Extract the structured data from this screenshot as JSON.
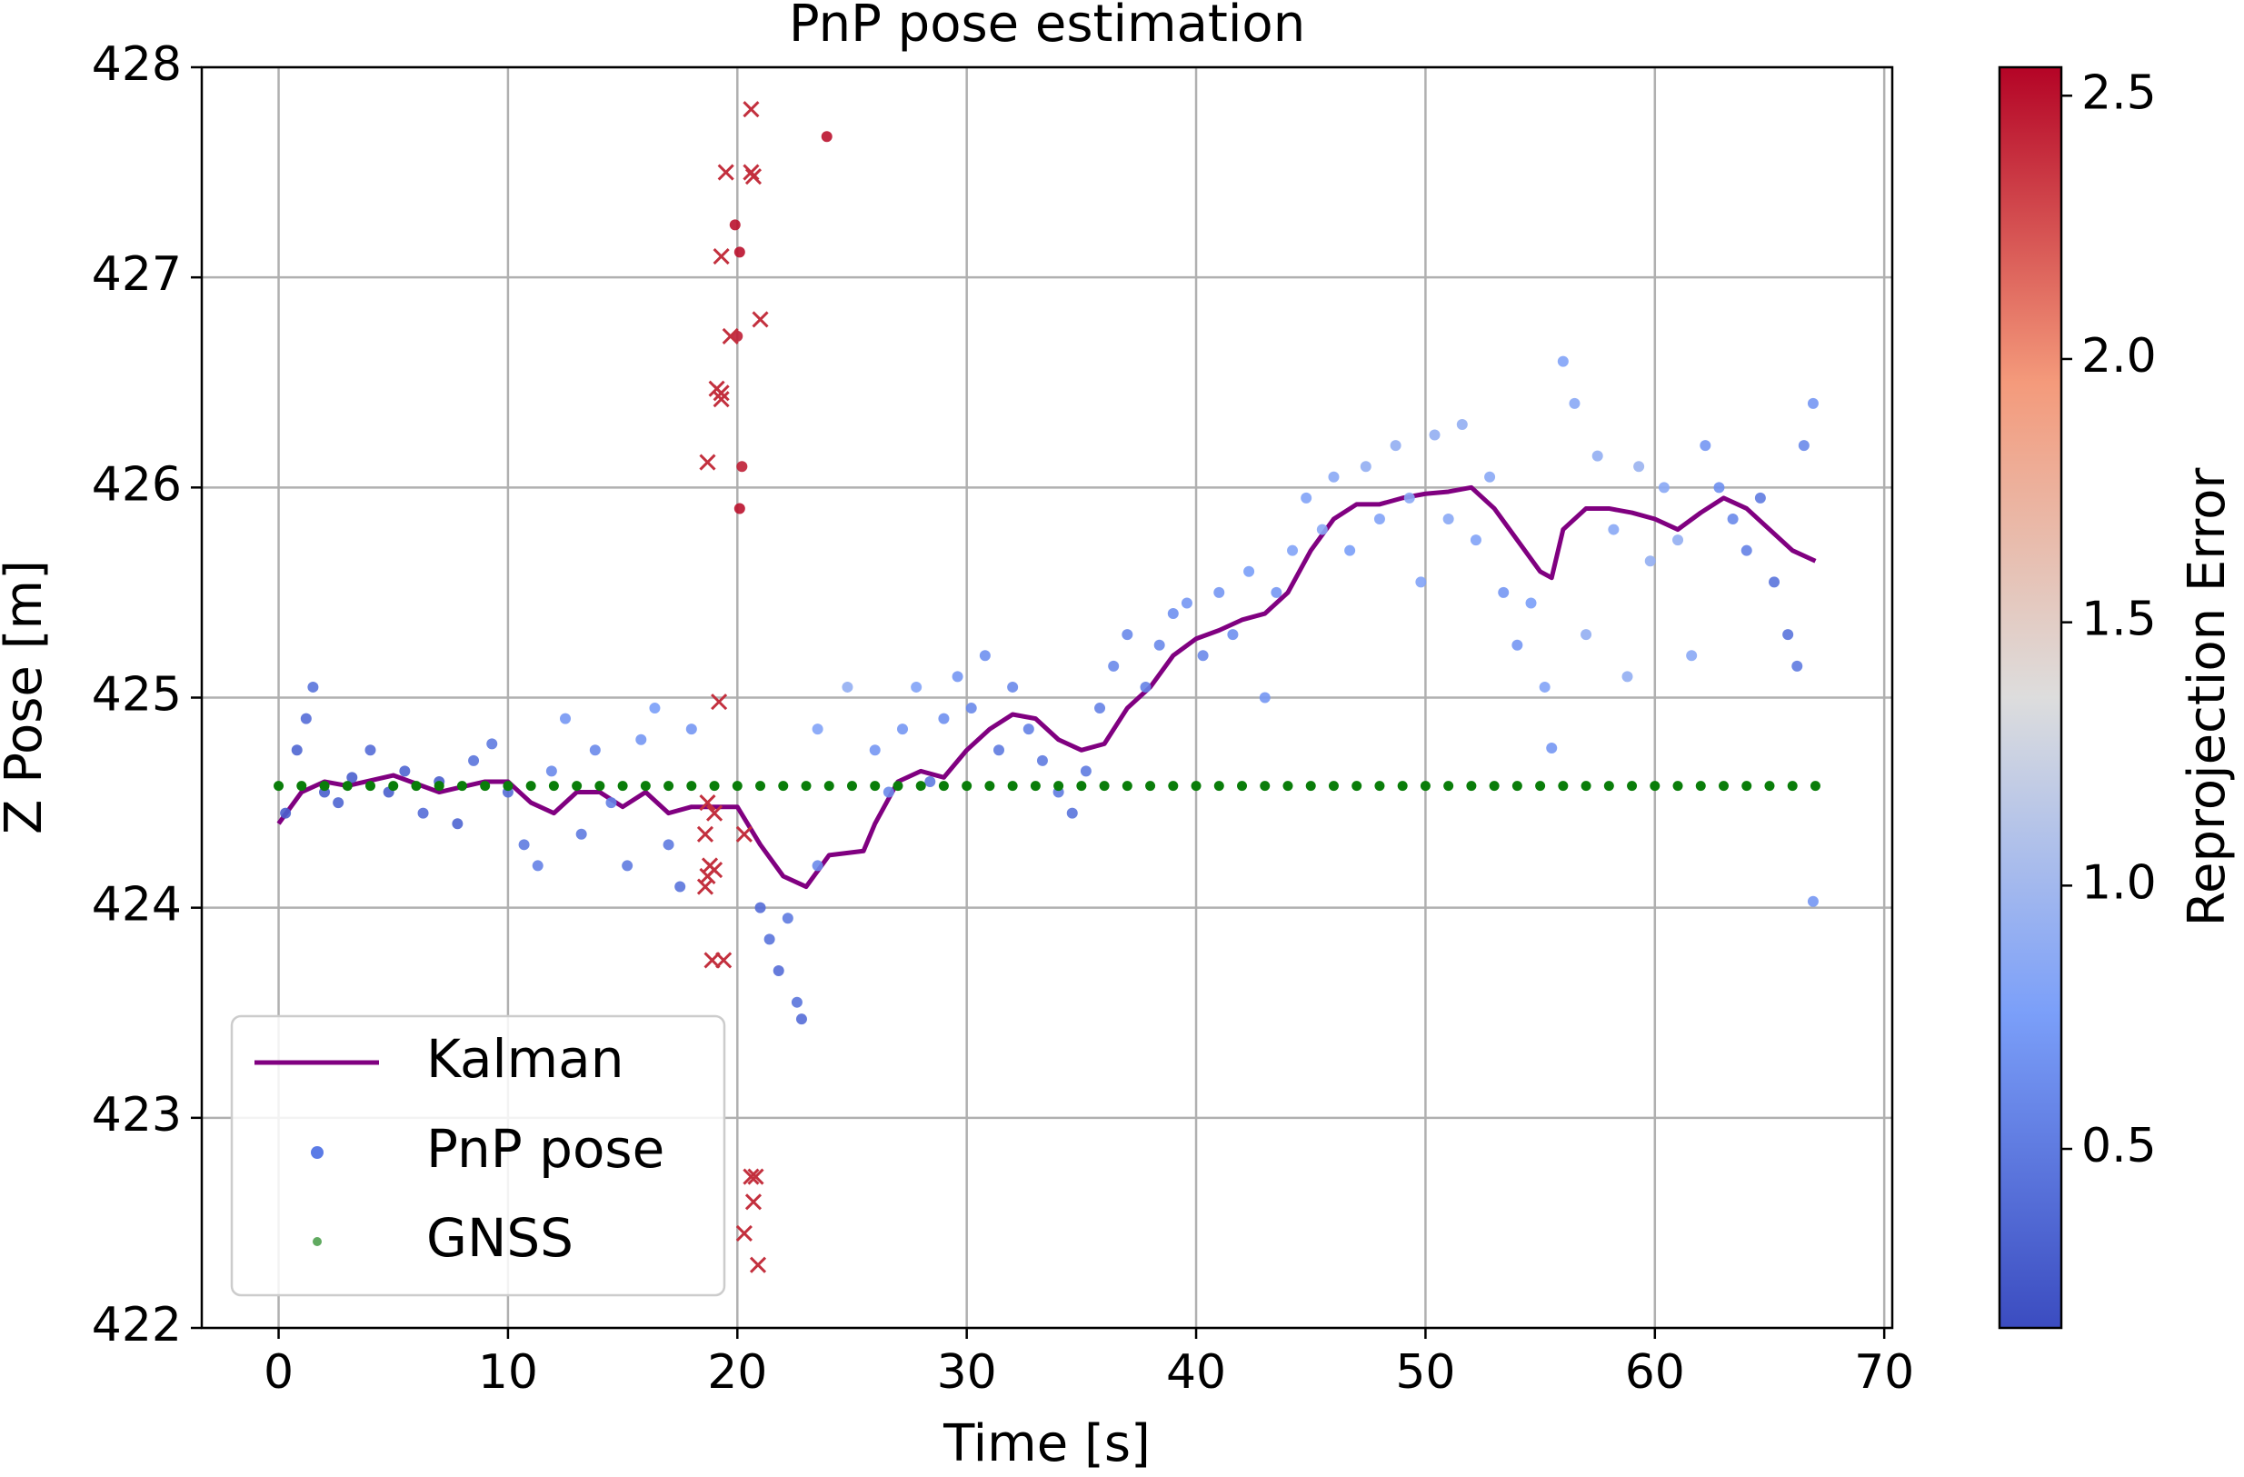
{
  "chart_data": {
    "type": "scatter",
    "title": "PnP pose estimation",
    "xlabel": "Time [s]",
    "ylabel": "Z Pose [m]",
    "xlim": [
      -3.35,
      70.35
    ],
    "ylim": [
      422,
      428
    ],
    "xticks": [
      0,
      10,
      20,
      30,
      40,
      50,
      60,
      70
    ],
    "yticks": [
      422,
      423,
      424,
      425,
      426,
      427,
      428
    ],
    "grid": true,
    "legend": "lower left",
    "colormap": "coolwarm",
    "colorbar_label": "Reprojection Error",
    "clim": [
      0.16,
      2.554
    ],
    "cticks": [
      0.5,
      {
        "value": 1.0,
        "label": "1.0"
      },
      1.5,
      {
        "value": 2.0,
        "label": "2.0"
      },
      2.5
    ],
    "series": [
      {
        "name": "Kalman",
        "kind": "line",
        "color": "#800080",
        "x": [
          0,
          1,
          2,
          3,
          5,
          7,
          9,
          10,
          11,
          12,
          13,
          14,
          15,
          16,
          17,
          18,
          19,
          20,
          21,
          22,
          23,
          24,
          25.5,
          26,
          27,
          28,
          29,
          30,
          31,
          32,
          33,
          34,
          35,
          36,
          37,
          38,
          39,
          40,
          41,
          42,
          43,
          44,
          45,
          46,
          47,
          48,
          49,
          50,
          51,
          52,
          53,
          54,
          55,
          55.5,
          56,
          57,
          58,
          59,
          60,
          61,
          62,
          63,
          64,
          65,
          66,
          67
        ],
        "values": [
          424.4,
          424.55,
          424.6,
          424.58,
          424.63,
          424.55,
          424.6,
          424.6,
          424.5,
          424.45,
          424.55,
          424.55,
          424.48,
          424.55,
          424.45,
          424.48,
          424.48,
          424.48,
          424.3,
          424.15,
          424.1,
          424.25,
          424.27,
          424.4,
          424.6,
          424.65,
          424.62,
          424.75,
          424.85,
          424.92,
          424.9,
          424.8,
          424.75,
          424.78,
          424.95,
          425.05,
          425.2,
          425.28,
          425.32,
          425.37,
          425.4,
          425.5,
          425.7,
          425.85,
          425.92,
          425.92,
          425.95,
          425.97,
          425.98,
          426.0,
          425.9,
          425.75,
          425.6,
          425.57,
          425.8,
          425.9,
          425.9,
          425.88,
          425.85,
          425.8,
          425.88,
          425.95,
          425.9,
          425.8,
          425.7,
          425.65
        ]
      },
      {
        "name": "PnP pose",
        "kind": "points",
        "color": "#5b7be6",
        "x": [
          0.3,
          0.8,
          1.2,
          1.5,
          2,
          2.6,
          3.2,
          4,
          4.8,
          5.5,
          6.3,
          7,
          7.8,
          8.5,
          9.3,
          10,
          10.7,
          11.3,
          11.9,
          12.5,
          13.2,
          13.8,
          14.5,
          15.2,
          15.8,
          16.4,
          17,
          17.5,
          18,
          21,
          21.4,
          21.8,
          22.2,
          22.6,
          22.8,
          23.5,
          23.5,
          24.8,
          26,
          26.6,
          27.2,
          27.8,
          28.4,
          29,
          29.6,
          30.2,
          30.8,
          31.4,
          32,
          32.7,
          33.3,
          34,
          34.6,
          35.2,
          35.8,
          36.4,
          37,
          37.8,
          38.4,
          39,
          39.6,
          40.3,
          41,
          41.6,
          42.3,
          43,
          43.5,
          44.2,
          44.8,
          45.5,
          46,
          46.7,
          47.4,
          48,
          48.7,
          49.3,
          49.8,
          50.4,
          51,
          51.6,
          52.2,
          52.8,
          53.4,
          54,
          54.6,
          55.2,
          55.5,
          56,
          56.5,
          57,
          57.5,
          58.2,
          58.8,
          59.3,
          59.8,
          60.4,
          61,
          61.6,
          62.2,
          62.8,
          63.4,
          64,
          64.6,
          65.2,
          65.8,
          66.2,
          66.5,
          66.9,
          66.9,
          23.9,
          19.9,
          20.1,
          20.0,
          20.2,
          20.1
        ],
        "values": [
          424.45,
          424.75,
          424.9,
          425.05,
          424.55,
          424.5,
          424.62,
          424.75,
          424.55,
          424.65,
          424.45,
          424.6,
          424.4,
          424.7,
          424.78,
          424.55,
          424.3,
          424.2,
          424.65,
          424.9,
          424.35,
          424.75,
          424.5,
          424.2,
          424.8,
          424.95,
          424.3,
          424.1,
          424.85,
          424.0,
          423.85,
          423.7,
          423.95,
          423.55,
          423.47,
          424.2,
          424.85,
          425.05,
          424.75,
          424.55,
          424.85,
          425.05,
          424.6,
          424.9,
          425.1,
          424.95,
          425.2,
          424.75,
          425.05,
          424.85,
          424.7,
          424.55,
          424.45,
          424.65,
          424.95,
          425.15,
          425.3,
          425.05,
          425.25,
          425.4,
          425.45,
          425.2,
          425.5,
          425.3,
          425.6,
          425.0,
          425.5,
          425.7,
          425.95,
          425.8,
          426.05,
          425.7,
          426.1,
          425.85,
          426.2,
          425.95,
          425.55,
          426.25,
          425.85,
          426.3,
          425.75,
          426.05,
          425.5,
          425.25,
          425.45,
          425.05,
          424.76,
          426.6,
          426.4,
          425.3,
          426.15,
          425.8,
          425.1,
          426.1,
          425.65,
          426.0,
          425.75,
          425.2,
          426.2,
          426.0,
          425.85,
          425.7,
          425.95,
          425.55,
          425.3,
          425.15,
          426.2,
          426.4,
          424.03,
          427.67,
          427.25,
          427.12,
          426.72,
          426.1,
          425.9
        ],
        "errors": [
          0.3,
          0.35,
          0.4,
          0.45,
          0.3,
          0.35,
          0.3,
          0.4,
          0.3,
          0.35,
          0.4,
          0.3,
          0.35,
          0.45,
          0.5,
          0.4,
          0.5,
          0.55,
          0.6,
          0.7,
          0.5,
          0.6,
          0.55,
          0.5,
          0.7,
          0.75,
          0.5,
          0.45,
          0.7,
          0.4,
          0.45,
          0.4,
          0.5,
          0.45,
          0.4,
          0.6,
          0.8,
          0.9,
          0.7,
          0.6,
          0.7,
          0.8,
          0.5,
          0.65,
          0.7,
          0.6,
          0.65,
          0.5,
          0.6,
          0.55,
          0.5,
          0.5,
          0.45,
          0.5,
          0.55,
          0.6,
          0.6,
          0.55,
          0.6,
          0.65,
          0.7,
          0.6,
          0.7,
          0.65,
          0.75,
          0.7,
          0.7,
          0.8,
          0.8,
          0.85,
          0.85,
          0.75,
          0.9,
          0.8,
          0.9,
          0.85,
          0.8,
          0.9,
          0.85,
          0.9,
          0.8,
          0.85,
          0.7,
          0.7,
          0.75,
          0.8,
          0.7,
          0.8,
          0.85,
          0.9,
          0.9,
          0.85,
          0.9,
          0.95,
          0.9,
          0.85,
          0.9,
          0.85,
          0.7,
          0.65,
          0.6,
          0.55,
          0.5,
          0.45,
          0.45,
          0.5,
          0.6,
          0.7,
          0.7,
          2.5,
          2.5,
          2.5,
          2.45,
          2.45,
          2.5
        ]
      },
      {
        "name": "GNSS",
        "kind": "points",
        "color": "#0a7d0a",
        "x": [
          0,
          1,
          2,
          3,
          4,
          5,
          6,
          7,
          8,
          9,
          10,
          11,
          12,
          13,
          14,
          15,
          16,
          17,
          18,
          19,
          20,
          21,
          22,
          23,
          24,
          25,
          26,
          27,
          28,
          29,
          30,
          31,
          32,
          33,
          34,
          35,
          36,
          37,
          38,
          39,
          40,
          41,
          42,
          43,
          44,
          45,
          46,
          47,
          48,
          49,
          50,
          51,
          52,
          53,
          54,
          55,
          56,
          57,
          58,
          59,
          60,
          61,
          62,
          63,
          64,
          65,
          66,
          67
        ],
        "values": [
          424.58,
          424.58,
          424.58,
          424.58,
          424.58,
          424.58,
          424.58,
          424.58,
          424.58,
          424.58,
          424.58,
          424.58,
          424.58,
          424.58,
          424.58,
          424.58,
          424.58,
          424.58,
          424.58,
          424.58,
          424.58,
          424.58,
          424.58,
          424.58,
          424.58,
          424.58,
          424.58,
          424.58,
          424.58,
          424.58,
          424.58,
          424.58,
          424.58,
          424.58,
          424.58,
          424.58,
          424.58,
          424.58,
          424.58,
          424.58,
          424.58,
          424.58,
          424.58,
          424.58,
          424.58,
          424.58,
          424.58,
          424.58,
          424.58,
          424.58,
          424.58,
          424.58,
          424.58,
          424.58,
          424.58,
          424.58,
          424.58,
          424.58,
          424.58,
          424.58,
          424.58,
          424.58,
          424.58,
          424.58,
          424.58,
          424.58,
          424.58,
          424.58
        ]
      }
    ],
    "outliers": {
      "color": "#c3303e",
      "x": [
        19.5,
        20.6,
        20.6,
        20.7,
        19.3,
        19.7,
        21,
        19.1,
        19.3,
        19.3,
        18.7,
        19.2,
        18.7,
        19,
        18.6,
        18.8,
        18.7,
        19,
        18.6,
        20.3,
        18.9,
        19.4,
        20.6,
        20.8,
        20.7,
        20.3,
        20.9
      ],
      "values": [
        427.5,
        427.8,
        427.5,
        427.48,
        427.1,
        426.72,
        426.8,
        426.47,
        426.42,
        426.45,
        426.12,
        424.98,
        424.5,
        424.45,
        424.35,
        424.2,
        424.15,
        424.18,
        424.1,
        424.35,
        423.75,
        423.75,
        422.72,
        422.72,
        422.6,
        422.45,
        422.3
      ]
    }
  }
}
